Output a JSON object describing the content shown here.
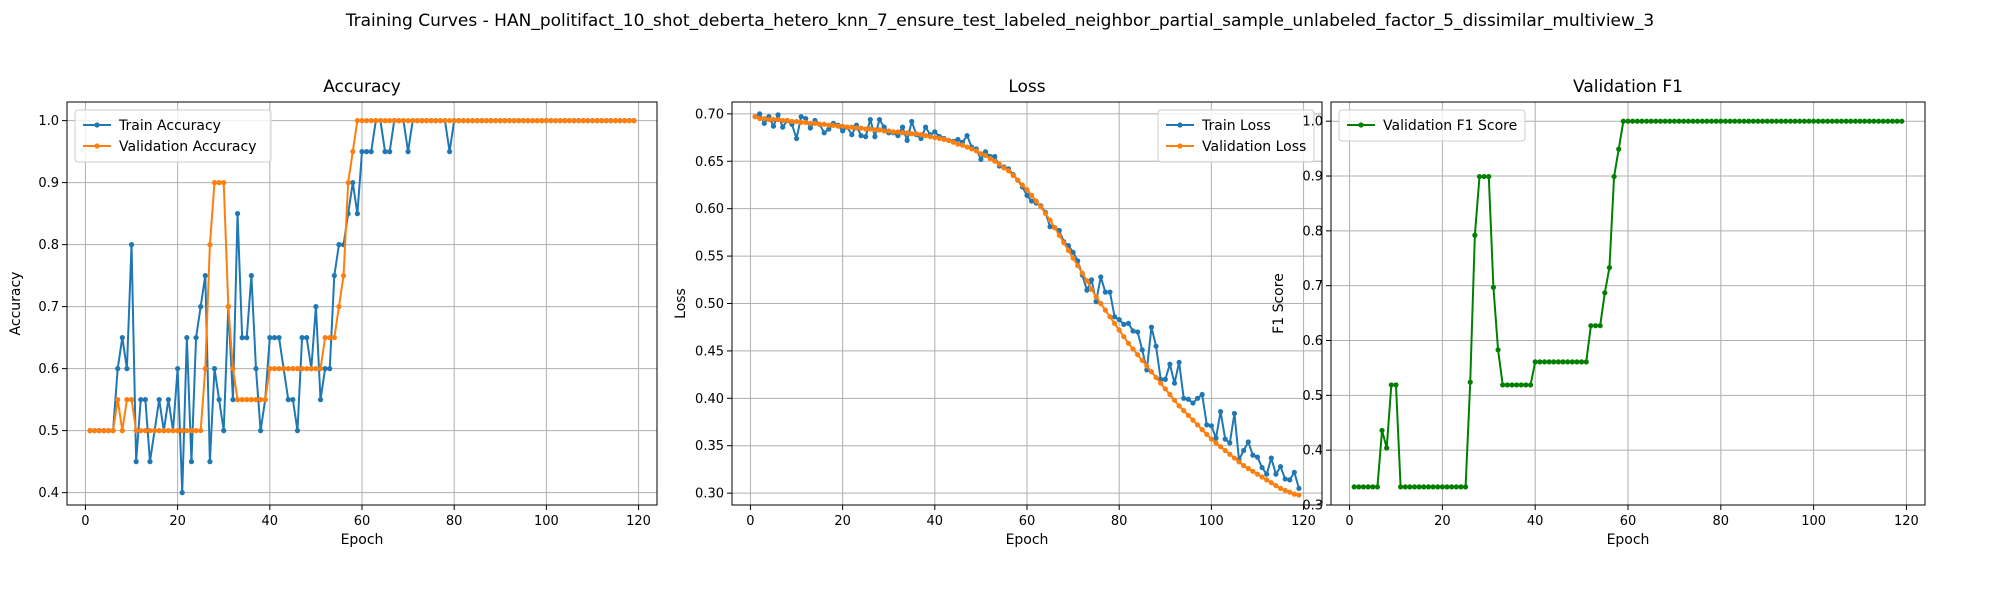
{
  "figure": {
    "suptitle": "Training Curves - HAN_politifact_10_shot_deberta_hetero_knn_7_ensure_test_labeled_neighbor_partial_sample_unlabeled_factor_5_dissimilar_multiview_3"
  },
  "colors": {
    "blue": "#1f77b4",
    "orange": "#ff7f0e",
    "green": "#008000",
    "grid": "#b0b0b0"
  },
  "chart_data": [
    {
      "type": "line",
      "title": "Accuracy",
      "xlabel": "Epoch",
      "ylabel": "Accuracy",
      "xlim": [
        -4,
        124
      ],
      "ylim": [
        0.38,
        1.03
      ],
      "xticks": [
        0,
        20,
        40,
        60,
        80,
        100,
        120
      ],
      "yticks": [
        0.4,
        0.5,
        0.6,
        0.7,
        0.8,
        0.9,
        1.0
      ],
      "ytick_labels": [
        "0.4",
        "0.5",
        "0.6",
        "0.7",
        "0.8",
        "0.9",
        "1.0"
      ],
      "grid": true,
      "legend_loc": "upper-left",
      "x_start": 1,
      "series": [
        {
          "name": "Train Accuracy",
          "color": "#1f77b4",
          "values": [
            0.5,
            0.5,
            0.5,
            0.5,
            0.5,
            0.5,
            0.6,
            0.65,
            0.6,
            0.8,
            0.45,
            0.55,
            0.55,
            0.45,
            0.5,
            0.55,
            0.5,
            0.55,
            0.5,
            0.6,
            0.4,
            0.65,
            0.45,
            0.65,
            0.7,
            0.75,
            0.45,
            0.6,
            0.55,
            0.5,
            0.7,
            0.55,
            0.85,
            0.65,
            0.65,
            0.75,
            0.6,
            0.5,
            0.55,
            0.65,
            0.65,
            0.65,
            0.6,
            0.55,
            0.55,
            0.5,
            0.65,
            0.65,
            0.6,
            0.7,
            0.55,
            0.6,
            0.6,
            0.75,
            0.8,
            0.8,
            0.85,
            0.9,
            0.85,
            0.95,
            0.95,
            0.95,
            1.0,
            1.0,
            0.95,
            0.95,
            1.0,
            1.0,
            1.0,
            0.95,
            1.0,
            1.0,
            1.0,
            1.0,
            1.0,
            1.0,
            1.0,
            1.0,
            0.95,
            1.0,
            1.0,
            1.0,
            1.0,
            1.0,
            1.0,
            1.0,
            1.0,
            1.0,
            1.0,
            1.0,
            1.0,
            1.0,
            1.0,
            1.0,
            1.0,
            1.0,
            1.0,
            1.0,
            1.0,
            1.0,
            1.0,
            1.0,
            1.0,
            1.0,
            1.0,
            1.0,
            1.0,
            1.0,
            1.0,
            1.0,
            1.0,
            1.0,
            1.0,
            1.0,
            1.0,
            1.0,
            1.0,
            1.0,
            1.0
          ]
        },
        {
          "name": "Validation Accuracy",
          "color": "#ff7f0e",
          "values": [
            0.5,
            0.5,
            0.5,
            0.5,
            0.5,
            0.5,
            0.55,
            0.5,
            0.55,
            0.55,
            0.5,
            0.5,
            0.5,
            0.5,
            0.5,
            0.5,
            0.5,
            0.5,
            0.5,
            0.5,
            0.5,
            0.5,
            0.5,
            0.5,
            0.5,
            0.6,
            0.8,
            0.9,
            0.9,
            0.9,
            0.7,
            0.6,
            0.55,
            0.55,
            0.55,
            0.55,
            0.55,
            0.55,
            0.55,
            0.6,
            0.6,
            0.6,
            0.6,
            0.6,
            0.6,
            0.6,
            0.6,
            0.6,
            0.6,
            0.6,
            0.6,
            0.65,
            0.65,
            0.65,
            0.7,
            0.75,
            0.9,
            0.95,
            1.0,
            1.0,
            1.0,
            1.0,
            1.0,
            1.0,
            1.0,
            1.0,
            1.0,
            1.0,
            1.0,
            1.0,
            1.0,
            1.0,
            1.0,
            1.0,
            1.0,
            1.0,
            1.0,
            1.0,
            1.0,
            1.0,
            1.0,
            1.0,
            1.0,
            1.0,
            1.0,
            1.0,
            1.0,
            1.0,
            1.0,
            1.0,
            1.0,
            1.0,
            1.0,
            1.0,
            1.0,
            1.0,
            1.0,
            1.0,
            1.0,
            1.0,
            1.0,
            1.0,
            1.0,
            1.0,
            1.0,
            1.0,
            1.0,
            1.0,
            1.0,
            1.0,
            1.0,
            1.0,
            1.0,
            1.0,
            1.0,
            1.0,
            1.0,
            1.0,
            1.0
          ]
        }
      ]
    },
    {
      "type": "line",
      "title": "Loss",
      "xlabel": "Epoch",
      "ylabel": "Loss",
      "xlim": [
        -4,
        124
      ],
      "ylim": [
        0.2875,
        0.7125
      ],
      "xticks": [
        0,
        20,
        40,
        60,
        80,
        100,
        120
      ],
      "yticks": [
        0.3,
        0.35,
        0.4,
        0.45,
        0.5,
        0.55,
        0.6,
        0.65,
        0.7
      ],
      "ytick_labels": [
        "0.30",
        "0.35",
        "0.40",
        "0.45",
        "0.50",
        "0.55",
        "0.60",
        "0.65",
        "0.70"
      ],
      "grid": true,
      "legend_loc": "upper-right",
      "x_start": 1,
      "series": [
        {
          "name": "Train Loss",
          "color": "#1f77b4",
          "values": [
            0.697,
            0.7,
            0.69,
            0.697,
            0.687,
            0.699,
            0.686,
            0.693,
            0.689,
            0.674,
            0.697,
            0.695,
            0.685,
            0.693,
            0.689,
            0.68,
            0.684,
            0.69,
            0.688,
            0.682,
            0.686,
            0.678,
            0.688,
            0.677,
            0.676,
            0.694,
            0.676,
            0.694,
            0.686,
            0.68,
            0.68,
            0.677,
            0.686,
            0.672,
            0.692,
            0.678,
            0.674,
            0.686,
            0.678,
            0.681,
            0.676,
            0.674,
            0.672,
            0.671,
            0.673,
            0.67,
            0.677,
            0.665,
            0.663,
            0.652,
            0.66,
            0.655,
            0.655,
            0.645,
            0.644,
            0.642,
            0.636,
            0.63,
            0.623,
            0.614,
            0.608,
            0.606,
            0.603,
            0.596,
            0.581,
            0.58,
            0.577,
            0.565,
            0.561,
            0.554,
            0.545,
            0.53,
            0.514,
            0.525,
            0.502,
            0.528,
            0.512,
            0.512,
            0.486,
            0.483,
            0.478,
            0.479,
            0.471,
            0.47,
            0.451,
            0.43,
            0.475,
            0.455,
            0.42,
            0.42,
            0.436,
            0.416,
            0.438,
            0.4,
            0.399,
            0.395,
            0.4,
            0.404,
            0.372,
            0.371,
            0.358,
            0.386,
            0.357,
            0.353,
            0.384,
            0.335,
            0.345,
            0.354,
            0.34,
            0.338,
            0.327,
            0.32,
            0.337,
            0.32,
            0.328,
            0.315,
            0.314,
            0.322,
            0.305
          ]
        },
        {
          "name": "Validation Loss",
          "color": "#ff7f0e",
          "values": [
            0.697,
            0.695,
            0.695,
            0.694,
            0.694,
            0.694,
            0.693,
            0.693,
            0.692,
            0.692,
            0.691,
            0.691,
            0.69,
            0.69,
            0.689,
            0.689,
            0.688,
            0.688,
            0.687,
            0.687,
            0.686,
            0.686,
            0.685,
            0.685,
            0.684,
            0.684,
            0.683,
            0.683,
            0.682,
            0.682,
            0.681,
            0.681,
            0.68,
            0.68,
            0.679,
            0.679,
            0.678,
            0.677,
            0.676,
            0.675,
            0.674,
            0.673,
            0.672,
            0.67,
            0.668,
            0.667,
            0.665,
            0.663,
            0.661,
            0.658,
            0.656,
            0.653,
            0.65,
            0.647,
            0.643,
            0.64,
            0.635,
            0.63,
            0.625,
            0.62,
            0.614,
            0.608,
            0.602,
            0.595,
            0.588,
            0.58,
            0.572,
            0.564,
            0.556,
            0.548,
            0.54,
            0.532,
            0.524,
            0.515,
            0.507,
            0.5,
            0.493,
            0.486,
            0.479,
            0.472,
            0.465,
            0.458,
            0.452,
            0.446,
            0.44,
            0.434,
            0.428,
            0.422,
            0.416,
            0.41,
            0.404,
            0.398,
            0.392,
            0.387,
            0.382,
            0.377,
            0.372,
            0.367,
            0.362,
            0.357,
            0.353,
            0.349,
            0.345,
            0.341,
            0.337,
            0.333,
            0.329,
            0.326,
            0.323,
            0.32,
            0.317,
            0.314,
            0.311,
            0.308,
            0.305,
            0.303,
            0.301,
            0.299,
            0.298
          ]
        }
      ]
    },
    {
      "type": "line",
      "title": "Validation F1",
      "xlabel": "Epoch",
      "ylabel": "F1 Score",
      "xlim": [
        -4,
        124
      ],
      "ylim": [
        0.3,
        1.035
      ],
      "xticks": [
        0,
        20,
        40,
        60,
        80,
        100,
        120
      ],
      "yticks": [
        0.3,
        0.4,
        0.5,
        0.6,
        0.7,
        0.8,
        0.9,
        1.0
      ],
      "ytick_labels": [
        "0.3",
        "0.4",
        "0.5",
        "0.6",
        "0.7",
        "0.8",
        "0.9",
        "1.0"
      ],
      "grid": true,
      "legend_loc": "upper-left",
      "x_start": 1,
      "series": [
        {
          "name": "Validation F1 Score",
          "color": "#008000",
          "values": [
            0.333,
            0.333,
            0.333,
            0.333,
            0.333,
            0.333,
            0.436,
            0.404,
            0.519,
            0.519,
            0.333,
            0.333,
            0.333,
            0.333,
            0.333,
            0.333,
            0.333,
            0.333,
            0.333,
            0.333,
            0.333,
            0.333,
            0.333,
            0.333,
            0.333,
            0.524,
            0.792,
            0.899,
            0.899,
            0.899,
            0.697,
            0.583,
            0.519,
            0.519,
            0.519,
            0.519,
            0.519,
            0.519,
            0.519,
            0.561,
            0.561,
            0.561,
            0.561,
            0.561,
            0.561,
            0.561,
            0.561,
            0.561,
            0.561,
            0.561,
            0.561,
            0.627,
            0.627,
            0.627,
            0.687,
            0.733,
            0.899,
            0.949,
            1.0,
            1.0,
            1.0,
            1.0,
            1.0,
            1.0,
            1.0,
            1.0,
            1.0,
            1.0,
            1.0,
            1.0,
            1.0,
            1.0,
            1.0,
            1.0,
            1.0,
            1.0,
            1.0,
            1.0,
            1.0,
            1.0,
            1.0,
            1.0,
            1.0,
            1.0,
            1.0,
            1.0,
            1.0,
            1.0,
            1.0,
            1.0,
            1.0,
            1.0,
            1.0,
            1.0,
            1.0,
            1.0,
            1.0,
            1.0,
            1.0,
            1.0,
            1.0,
            1.0,
            1.0,
            1.0,
            1.0,
            1.0,
            1.0,
            1.0,
            1.0,
            1.0,
            1.0,
            1.0,
            1.0,
            1.0,
            1.0,
            1.0,
            1.0,
            1.0,
            1.0
          ]
        }
      ]
    }
  ]
}
